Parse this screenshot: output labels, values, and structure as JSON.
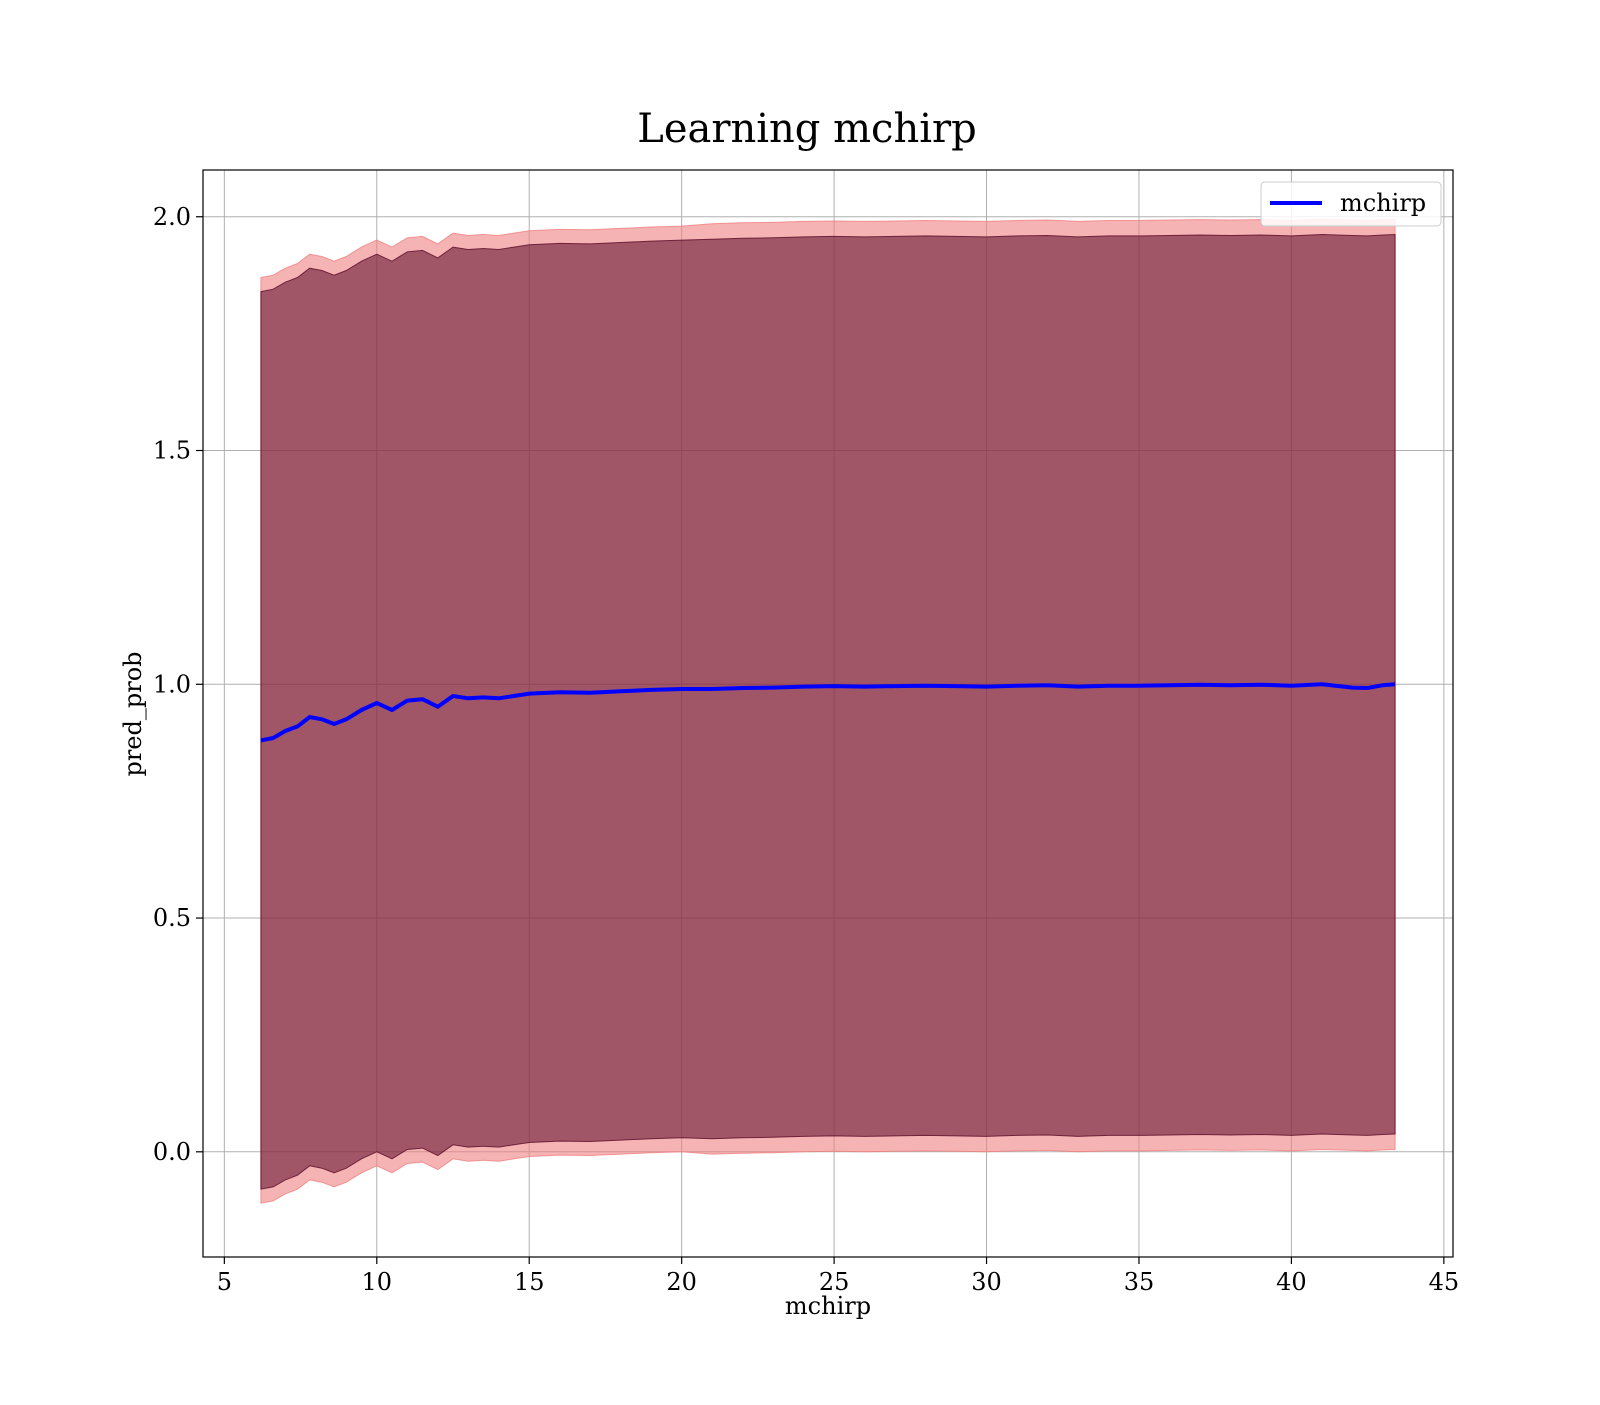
{
  "chart_data": {
    "type": "line",
    "title": "Learning mchirp",
    "xlabel": "mchirp",
    "ylabel": "pred_prob",
    "xlim": [
      4.3,
      45.3
    ],
    "ylim": [
      -0.225,
      2.1
    ],
    "xticks": [
      5,
      10,
      15,
      20,
      25,
      30,
      35,
      40,
      45
    ],
    "xtick_labels": [
      "5",
      "10",
      "15",
      "20",
      "25",
      "30",
      "35",
      "40",
      "45"
    ],
    "yticks": [
      0.0,
      0.5,
      1.0,
      1.5,
      2.0
    ],
    "ytick_labels": [
      "0.0",
      "0.5",
      "1.0",
      "1.5",
      "2.0"
    ],
    "grid": true,
    "legend": {
      "position": "top-right",
      "entries": [
        "mchirp"
      ]
    },
    "series": [
      {
        "name": "mchirp",
        "color": "#0000ff",
        "x": [
          6.2,
          6.6,
          7.0,
          7.4,
          7.8,
          8.2,
          8.6,
          9.0,
          9.5,
          10.0,
          10.5,
          11.0,
          11.5,
          12.0,
          12.5,
          13.0,
          13.5,
          14.0,
          14.5,
          15.0,
          16.0,
          17.0,
          18.0,
          19.0,
          20.0,
          21.0,
          22.0,
          23.0,
          24.0,
          25.0,
          26.0,
          27.0,
          28.0,
          29.0,
          30.0,
          31.0,
          32.0,
          33.0,
          34.0,
          35.0,
          36.0,
          37.0,
          38.0,
          39.0,
          40.0,
          41.0,
          42.0,
          42.5,
          43.0,
          43.4
        ],
        "y": [
          0.88,
          0.885,
          0.9,
          0.91,
          0.93,
          0.925,
          0.915,
          0.925,
          0.945,
          0.96,
          0.945,
          0.965,
          0.968,
          0.952,
          0.975,
          0.97,
          0.972,
          0.97,
          0.975,
          0.98,
          0.983,
          0.982,
          0.985,
          0.988,
          0.99,
          0.99,
          0.992,
          0.993,
          0.995,
          0.996,
          0.995,
          0.996,
          0.997,
          0.996,
          0.995,
          0.997,
          0.998,
          0.995,
          0.997,
          0.997,
          0.998,
          0.999,
          0.998,
          0.999,
          0.997,
          1.0,
          0.993,
          0.992,
          0.998,
          1.0
        ]
      }
    ],
    "bands": [
      {
        "color": "#f08080",
        "opacity": 0.6,
        "upper": [
          1.87,
          1.875,
          1.89,
          1.9,
          1.92,
          1.915,
          1.905,
          1.915,
          1.935,
          1.95,
          1.935,
          1.955,
          1.958,
          1.942,
          1.965,
          1.96,
          1.962,
          1.96,
          1.965,
          1.97,
          1.973,
          1.972,
          1.975,
          1.978,
          1.98,
          1.985,
          1.987,
          1.988,
          1.99,
          1.991,
          1.99,
          1.991,
          1.992,
          1.991,
          1.99,
          1.992,
          1.993,
          1.99,
          1.992,
          1.992,
          1.993,
          1.994,
          1.993,
          1.994,
          1.992,
          1.995,
          1.993,
          1.992,
          1.994,
          1.995
        ],
        "lower": [
          -0.11,
          -0.105,
          -0.09,
          -0.08,
          -0.06,
          -0.065,
          -0.075,
          -0.065,
          -0.045,
          -0.03,
          -0.045,
          -0.025,
          -0.022,
          -0.038,
          -0.015,
          -0.02,
          -0.018,
          -0.02,
          -0.015,
          -0.01,
          -0.007,
          -0.008,
          -0.005,
          -0.002,
          0.0,
          -0.005,
          -0.003,
          -0.002,
          0.0,
          0.001,
          0.0,
          0.001,
          0.002,
          0.001,
          0.0,
          0.002,
          0.003,
          0.0,
          0.002,
          0.002,
          0.003,
          0.004,
          0.003,
          0.004,
          0.002,
          0.005,
          0.003,
          0.002,
          0.004,
          0.005
        ]
      },
      {
        "color": "#5a0a28",
        "opacity": 0.55,
        "upper": [
          1.84,
          1.845,
          1.86,
          1.87,
          1.89,
          1.885,
          1.875,
          1.885,
          1.905,
          1.92,
          1.905,
          1.925,
          1.928,
          1.912,
          1.935,
          1.93,
          1.932,
          1.93,
          1.935,
          1.94,
          1.943,
          1.942,
          1.945,
          1.948,
          1.95,
          1.952,
          1.954,
          1.955,
          1.957,
          1.958,
          1.957,
          1.958,
          1.959,
          1.958,
          1.957,
          1.959,
          1.96,
          1.957,
          1.959,
          1.959,
          1.96,
          1.961,
          1.96,
          1.961,
          1.959,
          1.962,
          1.96,
          1.959,
          1.961,
          1.962
        ],
        "lower": [
          -0.08,
          -0.075,
          -0.06,
          -0.05,
          -0.03,
          -0.035,
          -0.045,
          -0.035,
          -0.015,
          0.0,
          -0.015,
          0.005,
          0.008,
          -0.008,
          0.015,
          0.01,
          0.012,
          0.01,
          0.015,
          0.02,
          0.023,
          0.022,
          0.025,
          0.028,
          0.03,
          0.028,
          0.03,
          0.031,
          0.033,
          0.034,
          0.033,
          0.034,
          0.035,
          0.034,
          0.033,
          0.035,
          0.036,
          0.033,
          0.035,
          0.035,
          0.036,
          0.037,
          0.036,
          0.037,
          0.035,
          0.038,
          0.036,
          0.035,
          0.037,
          0.038
        ]
      }
    ]
  }
}
